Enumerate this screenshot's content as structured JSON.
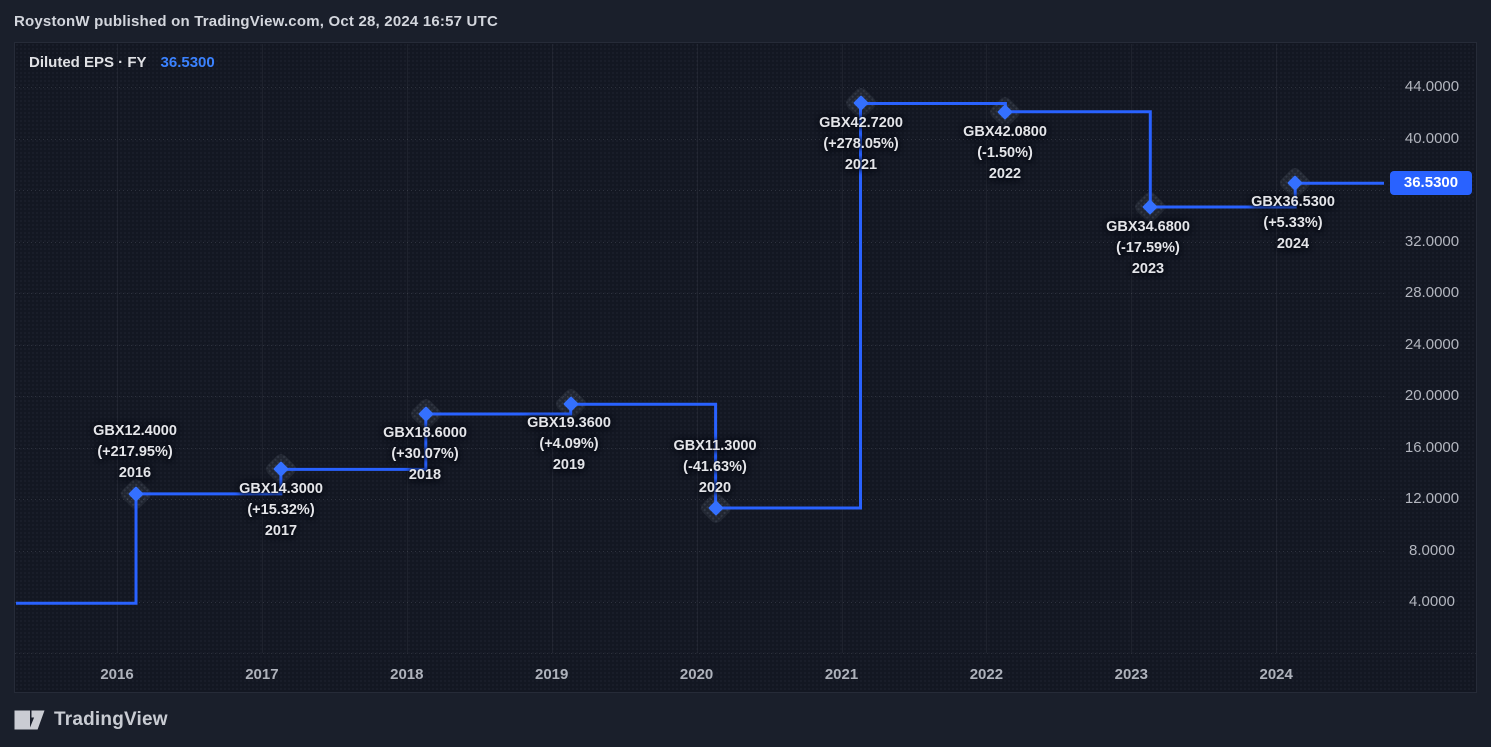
{
  "header": {
    "text": "RoystonW published on TradingView.com, Oct 28, 2024 16:57 UTC"
  },
  "legend": {
    "title": "Diluted EPS · FY",
    "value": "36.5300"
  },
  "price_scale": {
    "last_price_label": "36.5300",
    "ticks": [
      {
        "label": "44.0000",
        "value": 44
      },
      {
        "label": "40.0000",
        "value": 40
      },
      {
        "label": "32.0000",
        "value": 32
      },
      {
        "label": "28.0000",
        "value": 28
      },
      {
        "label": "24.0000",
        "value": 24
      },
      {
        "label": "20.0000",
        "value": 20
      },
      {
        "label": "16.0000",
        "value": 16
      },
      {
        "label": "12.0000",
        "value": 12
      },
      {
        "label": "8.0000",
        "value": 8
      },
      {
        "label": "4.0000",
        "value": 4
      }
    ]
  },
  "time_scale": {
    "ticks": [
      {
        "label": "2016",
        "year": 2016
      },
      {
        "label": "2017",
        "year": 2017
      },
      {
        "label": "2018",
        "year": 2018
      },
      {
        "label": "2019",
        "year": 2019
      },
      {
        "label": "2020",
        "year": 2020
      },
      {
        "label": "2021",
        "year": 2021
      },
      {
        "label": "2022",
        "year": 2022
      },
      {
        "label": "2023",
        "year": 2023
      },
      {
        "label": "2024",
        "year": 2024
      }
    ]
  },
  "footer": {
    "brand": "TradingView"
  },
  "colors": {
    "accent": "#2962FF",
    "marker": "#3470ff",
    "price_tag_bg": "#2962FF",
    "legend_value": "#3b82ff",
    "panel_bg": "#131722",
    "page_bg": "#1a1f2b"
  },
  "chart_data": {
    "type": "line",
    "subtype": "step",
    "title": "Diluted EPS · FY",
    "unit": "GBX",
    "grid": true,
    "legend_position": "top-left",
    "x": [
      2016,
      2017,
      2018,
      2019,
      2020,
      2021,
      2022,
      2023,
      2024
    ],
    "values": [
      12.4,
      14.3,
      18.6,
      19.36,
      11.3,
      42.72,
      42.08,
      34.68,
      36.53
    ],
    "entry_value_prior_year": 3.9,
    "current_value": 36.53,
    "ylim": [
      0,
      47
    ],
    "y_gridline_values": [
      44,
      40,
      36,
      32,
      28,
      24,
      20,
      16,
      12,
      8,
      4
    ],
    "points": [
      {
        "year": 2016,
        "value": 12.4,
        "value_label": "GBX12.4000",
        "change_label": "(+217.95%)",
        "year_label": "2016"
      },
      {
        "year": 2017,
        "value": 14.3,
        "value_label": "GBX14.3000",
        "change_label": "(+15.32%)",
        "year_label": "2017"
      },
      {
        "year": 2018,
        "value": 18.6,
        "value_label": "GBX18.6000",
        "change_label": "(+30.07%)",
        "year_label": "2018"
      },
      {
        "year": 2019,
        "value": 19.36,
        "value_label": "GBX19.3600",
        "change_label": "(+4.09%)",
        "year_label": "2019"
      },
      {
        "year": 2020,
        "value": 11.3,
        "value_label": "GBX11.3000",
        "change_label": "(-41.63%)",
        "year_label": "2020"
      },
      {
        "year": 2021,
        "value": 42.72,
        "value_label": "GBX42.7200",
        "change_label": "(+278.05%)",
        "year_label": "2021"
      },
      {
        "year": 2022,
        "value": 42.08,
        "value_label": "GBX42.0800",
        "change_label": "(-1.50%)",
        "year_label": "2022"
      },
      {
        "year": 2023,
        "value": 34.68,
        "value_label": "GBX34.6800",
        "change_label": "(-17.59%)",
        "year_label": "2023"
      },
      {
        "year": 2024,
        "value": 36.53,
        "value_label": "GBX36.5300",
        "change_label": "(+5.33%)",
        "year_label": "2024"
      }
    ]
  }
}
